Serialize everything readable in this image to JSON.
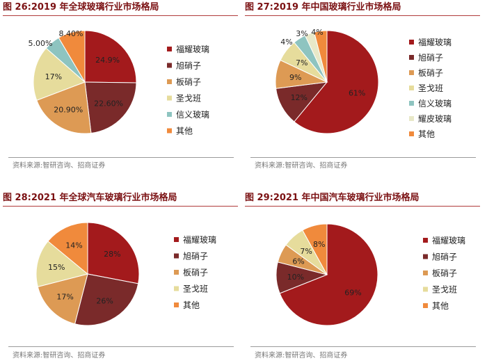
{
  "source_prefix": "资料来源:",
  "panels": [
    {
      "title": "图 26:2019 年全球玻璃行业市场格局",
      "source": "资料来源:智研咨询、招商证券"
    },
    {
      "title": "图 27:2019 年中国玻璃行业市场格局",
      "source": "资料来源:智研咨询、招商证券"
    },
    {
      "title": "图 28:2021 年全球汽车玻璃行业市场格局",
      "source": "资料来源:智研咨询、招商证券"
    },
    {
      "title": "图 29:2021 年中国汽车玻璃行业市场格局",
      "source": "资料来源:智研咨询、招商证券"
    }
  ],
  "colors": {
    "福耀玻璃": "#a31a1c",
    "旭硝子": "#7a2a2a",
    "板硝子": "#dd9a54",
    "圣戈班": "#e6dc9c",
    "信义玻璃": "#8ec4c0",
    "耀皮玻璃": "#e8e8c8",
    "其他": "#f08a3c"
  },
  "chart_data": [
    {
      "type": "pie",
      "title": "图 26:2019 年全球玻璃行业市场格局",
      "categories": [
        "福耀玻璃",
        "旭硝子",
        "板硝子",
        "圣戈班",
        "信义玻璃",
        "其他"
      ],
      "values": [
        24.9,
        22.6,
        20.9,
        17,
        5.0,
        8.4
      ],
      "labels": [
        "24.9%",
        "22.60%",
        "20.90%",
        "17%",
        "5.00%",
        "8.40%"
      ],
      "legend_position": "right"
    },
    {
      "type": "pie",
      "title": "图 27:2019 年中国玻璃行业市场格局",
      "categories": [
        "福耀玻璃",
        "旭硝子",
        "板硝子",
        "圣戈班",
        "信义玻璃",
        "耀皮玻璃",
        "其他"
      ],
      "values": [
        61,
        12,
        9,
        7,
        4,
        3,
        4
      ],
      "labels": [
        "61%",
        "12%",
        "9%",
        "7%",
        "4%",
        "3%",
        "4%"
      ],
      "legend_position": "right"
    },
    {
      "type": "pie",
      "title": "图 28:2021 年全球汽车玻璃行业市场格局",
      "categories": [
        "福耀玻璃",
        "旭硝子",
        "板硝子",
        "圣戈班",
        "其他"
      ],
      "values": [
        28,
        26,
        17,
        15,
        14
      ],
      "labels": [
        "28%",
        "26%",
        "17%",
        "15%",
        "14%"
      ],
      "legend_position": "right"
    },
    {
      "type": "pie",
      "title": "图 29:2021 年中国汽车玻璃行业市场格局",
      "categories": [
        "福耀玻璃",
        "旭硝子",
        "板硝子",
        "圣戈班",
        "其他"
      ],
      "values": [
        69,
        10,
        6,
        7,
        8
      ],
      "labels": [
        "69%",
        "10%",
        "6%",
        "7%",
        "8%"
      ],
      "legend_position": "right"
    }
  ]
}
